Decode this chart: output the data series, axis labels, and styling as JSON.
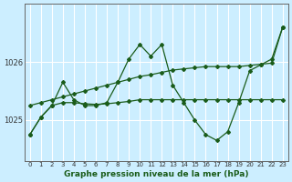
{
  "xlabel": "Graphe pression niveau de la mer (hPa)",
  "background_color": "#cceeff",
  "grid_color": "#ffffff",
  "line_color": "#1a5c1a",
  "x_ticks": [
    0,
    1,
    2,
    3,
    4,
    5,
    6,
    7,
    8,
    9,
    10,
    11,
    12,
    13,
    14,
    15,
    16,
    17,
    18,
    19,
    20,
    21,
    22,
    23
  ],
  "ylim": [
    1024.3,
    1027.0
  ],
  "yticks": [
    1025,
    1026
  ],
  "series": [
    [
      1024.75,
      1025.05,
      1025.25,
      1025.3,
      1025.3,
      1025.28,
      1025.27,
      1025.28,
      1025.3,
      1025.32,
      1025.35,
      1025.35,
      1025.35,
      1025.35,
      1025.35,
      1025.35,
      1025.35,
      1025.35,
      1025.35,
      1025.35,
      1025.35,
      1025.35,
      1025.35,
      1025.35
    ],
    [
      1024.75,
      1025.05,
      1025.25,
      1025.65,
      1025.35,
      1025.25,
      1025.25,
      1025.3,
      1025.65,
      1026.05,
      1026.3,
      1026.1,
      1026.3,
      1025.6,
      1025.3,
      1025.0,
      1024.75,
      1024.65,
      1024.8,
      1025.3,
      1025.85,
      1025.95,
      1026.05,
      1026.6
    ],
    [
      1025.25,
      1025.3,
      1025.35,
      1025.4,
      1025.45,
      1025.5,
      1025.55,
      1025.6,
      1025.65,
      1025.7,
      1025.75,
      1025.78,
      1025.82,
      1025.86,
      1025.88,
      1025.9,
      1025.92,
      1025.92,
      1025.92,
      1025.92,
      1025.94,
      1025.96,
      1025.98,
      1026.6
    ]
  ],
  "figsize": [
    3.2,
    2.0
  ],
  "dpi": 100
}
